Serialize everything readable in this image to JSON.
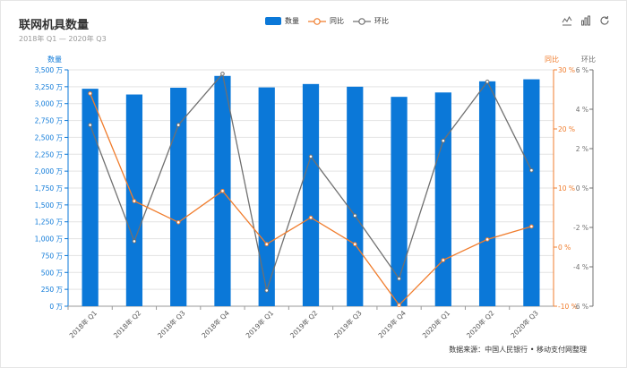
{
  "chart_data": {
    "type": "bar",
    "title": "联网机具数量",
    "subtitle": "2018年 Q1 — 2020年 Q3",
    "categories": [
      "2018年 Q1",
      "2018年 Q2",
      "2018年 Q3",
      "2018年 Q4",
      "2019年 Q1",
      "2019年 Q2",
      "2019年 Q3",
      "2019年 Q4",
      "2020年 Q1",
      "2020年 Q2",
      "2020年 Q3"
    ],
    "series": [
      {
        "name": "数量",
        "type": "bar",
        "axis": "left",
        "color": "#0b78d8",
        "values": [
          3220,
          3135,
          3235,
          3410,
          3240,
          3290,
          3250,
          3100,
          3165,
          3330,
          3360
        ]
      },
      {
        "name": "同比",
        "type": "line",
        "axis": "right",
        "color": "#f07c2c",
        "values": [
          26.0,
          7.8,
          4.2,
          9.5,
          0.5,
          5.0,
          0.5,
          -9.8,
          -2.2,
          1.3,
          3.5
        ]
      },
      {
        "name": "环比",
        "type": "line",
        "axis": "right2",
        "color": "#707070",
        "values": [
          3.2,
          -2.7,
          3.2,
          5.8,
          -5.2,
          1.6,
          -1.4,
          -4.6,
          2.4,
          5.4,
          0.9
        ]
      }
    ],
    "axes": {
      "left": {
        "label": "数量",
        "min": 0,
        "max": 3500,
        "ticks": [
          "0 万",
          "250 万",
          "500 万",
          "750 万",
          "1,000 万",
          "1,250 万",
          "1,500 万",
          "1,750 万",
          "2,000 万",
          "2,250 万",
          "2,500 万",
          "2,750 万",
          "3,000 万",
          "3,250 万",
          "3,500 万"
        ]
      },
      "right": {
        "label": "同比",
        "min": -10,
        "max": 30,
        "ticks": [
          "-10 %",
          "0 %",
          "10 %",
          "20 %",
          "30 %"
        ]
      },
      "right2": {
        "label": "环比",
        "min": -6,
        "max": 6,
        "ticks": [
          "-6 %",
          "-4 %",
          "-2 %",
          "0 %",
          "2 %",
          "4 %",
          "6 %"
        ]
      }
    },
    "grid": true,
    "legend": "top-center"
  },
  "source_text": "数据来源：中国人民银行 • 移动支付网整理",
  "toolbox": {
    "icons": [
      "line-chart-icon",
      "bar-chart-icon",
      "refresh-icon"
    ]
  }
}
